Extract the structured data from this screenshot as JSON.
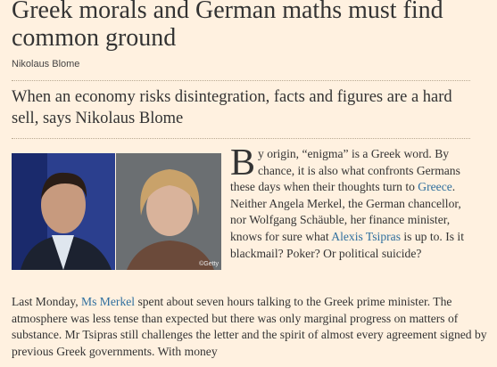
{
  "article": {
    "headline": "Greek morals and German maths must find common ground",
    "byline": "Nikolaus Blome",
    "standfirst": "When an economy risks disintegration, facts and figures are a hard sell, says Nikolaus Blome",
    "image_credit": "©Getty",
    "paragraphs": [
      {
        "drop_cap": "B",
        "segments": [
          {
            "text": "y origin, “enigma” is a Greek word. By chance, it is also what confronts Germans these days when their thoughts turn to "
          },
          {
            "text": "Greece",
            "link": true
          },
          {
            "text": ". Neither Angela Merkel, the German chancellor, nor Wolfgang Schäuble, her finance minister, knows for sure what "
          },
          {
            "text": "Alexis Tsipras",
            "link": true
          },
          {
            "text": " is up to. Is it blackmail? Poker? Or political suicide?"
          }
        ]
      },
      {
        "segments": [
          {
            "text": "Last Monday, "
          },
          {
            "text": "Ms Merkel",
            "link": true
          },
          {
            "text": " spent about seven hours talking to the Greek prime minister. The atmosphere was less tense than expected but there was only marginal progress on matters of substance. Mr Tsipras still challenges the letter and the spirit of almost every agreement signed by previous Greek governments. With money"
          }
        ]
      }
    ]
  }
}
